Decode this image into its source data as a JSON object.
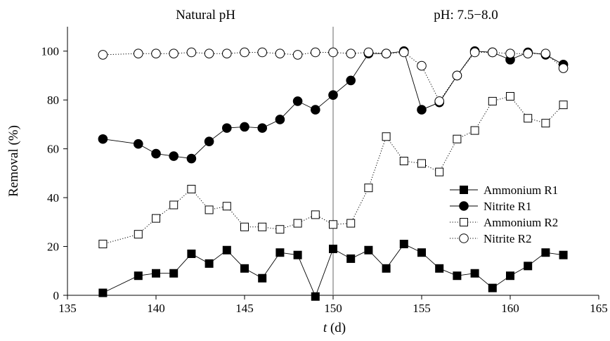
{
  "chart_data": {
    "type": "line",
    "xlabel_italic": "t",
    "xlabel_rest": " (d)",
    "ylabel": "Removal (%)",
    "xlim": [
      135,
      165
    ],
    "ylim": [
      0,
      110
    ],
    "xticks": [
      135,
      140,
      145,
      150,
      155,
      160,
      165
    ],
    "yticks": [
      0,
      20,
      40,
      60,
      80,
      100
    ],
    "grid": false,
    "legend_position": "right",
    "vline_x": 150,
    "annotations": {
      "left": "Natural pH",
      "right": "pH: 7.5−8.0"
    },
    "series": [
      {
        "name": "Ammonium R1",
        "marker": "square-filled",
        "line": "solid",
        "points": [
          [
            137,
            1
          ],
          [
            139,
            8
          ],
          [
            140,
            9
          ],
          [
            141,
            9
          ],
          [
            142,
            17
          ],
          [
            143,
            13
          ],
          [
            144,
            18.5
          ],
          [
            145,
            11
          ],
          [
            146,
            7
          ],
          [
            147,
            17.5
          ],
          [
            148,
            16.5
          ],
          [
            149,
            -0.5
          ],
          [
            150,
            19
          ],
          [
            151,
            15
          ],
          [
            152,
            18.5
          ],
          [
            153,
            11
          ],
          [
            154,
            21
          ],
          [
            155,
            17.5
          ],
          [
            156,
            11
          ],
          [
            157,
            8
          ],
          [
            158,
            9
          ],
          [
            159,
            3
          ],
          [
            160,
            8
          ],
          [
            161,
            12
          ],
          [
            162,
            17.5
          ],
          [
            163,
            16.5
          ]
        ]
      },
      {
        "name": "Nitrite R1",
        "marker": "circle-filled",
        "line": "solid",
        "points": [
          [
            137,
            64
          ],
          [
            139,
            62
          ],
          [
            140,
            58
          ],
          [
            141,
            57
          ],
          [
            142,
            56
          ],
          [
            143,
            63
          ],
          [
            144,
            68.5
          ],
          [
            145,
            69
          ],
          [
            146,
            68.5
          ],
          [
            147,
            72
          ],
          [
            148,
            79.5
          ],
          [
            149,
            76
          ],
          [
            150,
            82
          ],
          [
            151,
            88
          ],
          [
            152,
            99
          ],
          [
            153,
            99
          ],
          [
            154,
            100
          ],
          [
            155,
            76
          ],
          [
            156,
            79
          ],
          [
            157,
            90
          ],
          [
            158,
            100
          ],
          [
            159,
            99.5
          ],
          [
            160,
            96.5
          ],
          [
            161,
            99.5
          ],
          [
            162,
            98.5
          ],
          [
            163,
            94.5
          ]
        ]
      },
      {
        "name": "Ammonium R2",
        "marker": "square-open",
        "line": "dotted",
        "points": [
          [
            137,
            21
          ],
          [
            139,
            25
          ],
          [
            140,
            31.5
          ],
          [
            141,
            37
          ],
          [
            142,
            43.5
          ],
          [
            143,
            35
          ],
          [
            144,
            36.5
          ],
          [
            145,
            28
          ],
          [
            146,
            28
          ],
          [
            147,
            27
          ],
          [
            148,
            29.5
          ],
          [
            149,
            33
          ],
          [
            150,
            29
          ],
          [
            151,
            29.5
          ],
          [
            152,
            44
          ],
          [
            153,
            65
          ],
          [
            154,
            55
          ],
          [
            155,
            54
          ],
          [
            156,
            50.5
          ],
          [
            157,
            64
          ],
          [
            158,
            67.5
          ],
          [
            159,
            79.5
          ],
          [
            160,
            81.5
          ],
          [
            161,
            72.5
          ],
          [
            162,
            70.5
          ],
          [
            163,
            78
          ]
        ]
      },
      {
        "name": "Nitrite R2",
        "marker": "circle-open",
        "line": "dotted",
        "points": [
          [
            137,
            98.5
          ],
          [
            139,
            99
          ],
          [
            140,
            99
          ],
          [
            141,
            99
          ],
          [
            142,
            99.5
          ],
          [
            143,
            99
          ],
          [
            144,
            99
          ],
          [
            145,
            99.5
          ],
          [
            146,
            99.5
          ],
          [
            147,
            99
          ],
          [
            148,
            98.5
          ],
          [
            149,
            99.5
          ],
          [
            150,
            99.5
          ],
          [
            151,
            99
          ],
          [
            152,
            99.5
          ],
          [
            153,
            99
          ],
          [
            154,
            99.5
          ],
          [
            155,
            94
          ],
          [
            156,
            79.5
          ],
          [
            157,
            90
          ],
          [
            158,
            99.5
          ],
          [
            159,
            99.5
          ],
          [
            160,
            99
          ],
          [
            161,
            99
          ],
          [
            162,
            99
          ],
          [
            163,
            93
          ]
        ]
      }
    ]
  }
}
